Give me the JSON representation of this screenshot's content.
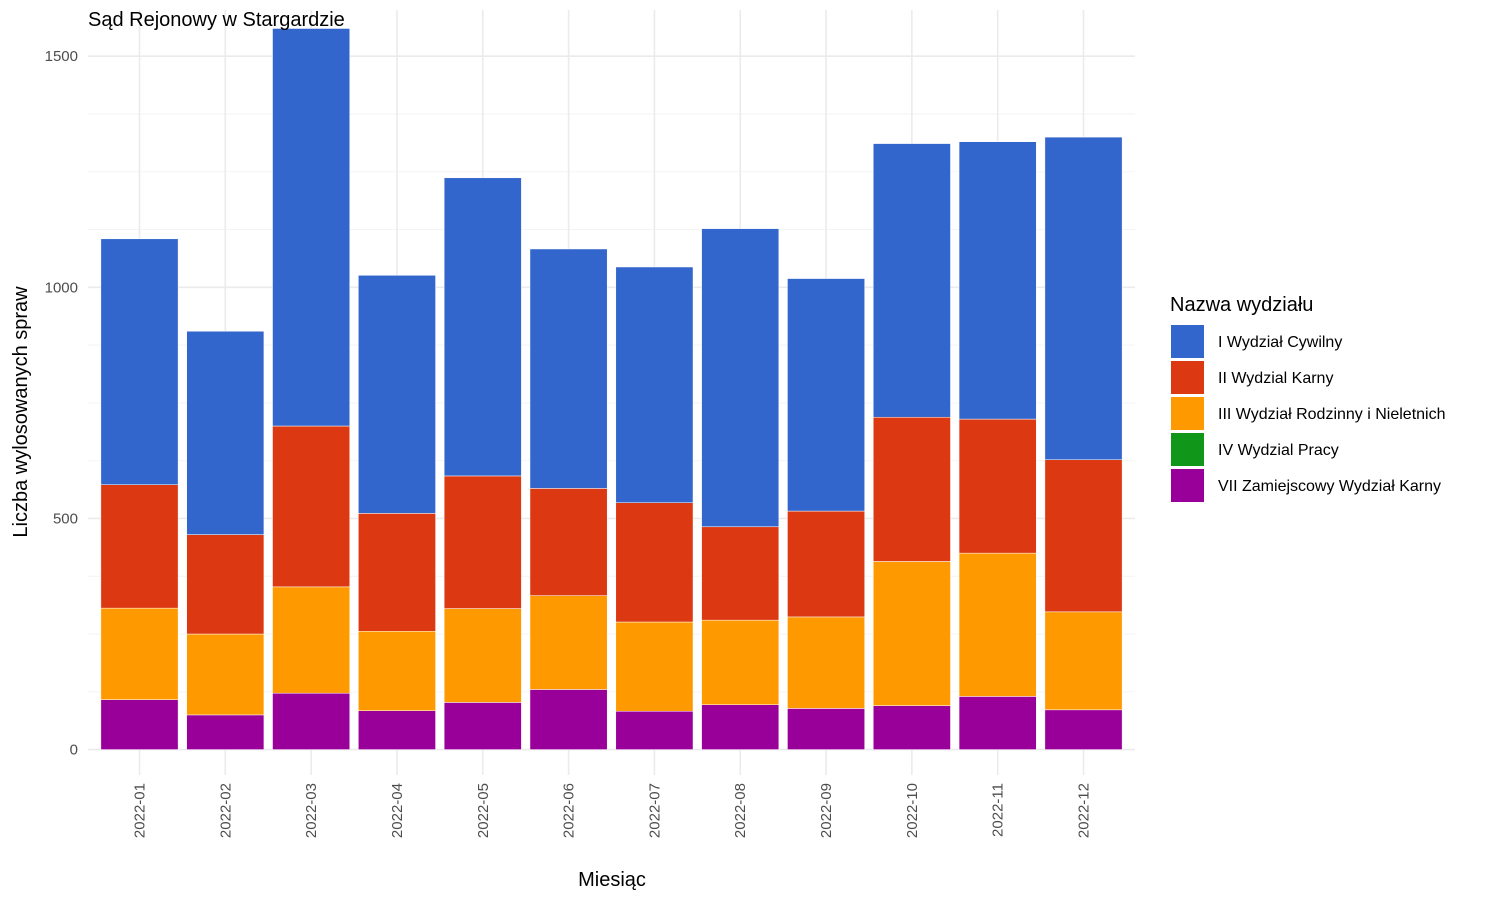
{
  "chart_data": {
    "type": "bar",
    "stacked": true,
    "title": "Sąd Rejonowy w Stargardzie",
    "xlabel": "Miesiąc",
    "ylabel": "Liczba wylosowanych spraw",
    "ylim": [
      -55,
      1600
    ],
    "yticks": [
      0,
      500,
      1000,
      1500
    ],
    "grid": true,
    "legend": {
      "title": "Nazwa wydziału",
      "position": "right"
    },
    "categories": [
      "2022-01",
      "2022-02",
      "2022-03",
      "2022-04",
      "2022-05",
      "2022-06",
      "2022-07",
      "2022-08",
      "2022-09",
      "2022-10",
      "2022-11",
      "2022-12"
    ],
    "series": [
      {
        "name": "VII Zamiejscowy Wydział Karny",
        "color": "#990099",
        "values": [
          108,
          75,
          122,
          84,
          102,
          130,
          83,
          97,
          89,
          95,
          115,
          86
        ]
      },
      {
        "name": "IV Wydzial Pracy",
        "color": "#109618",
        "values": [
          0,
          0,
          0,
          0,
          0,
          0,
          0,
          0,
          0,
          0,
          0,
          0
        ]
      },
      {
        "name": "III Wydział Rodzinny i Nieletnich",
        "color": "#FF9900",
        "values": [
          198,
          175,
          230,
          172,
          203,
          203,
          193,
          183,
          198,
          312,
          310,
          212
        ]
      },
      {
        "name": "II Wydzial Karny",
        "color": "#DC3912",
        "values": [
          267,
          215,
          348,
          255,
          287,
          232,
          258,
          202,
          229,
          312,
          290,
          329
        ]
      },
      {
        "name": "I Wydział Cywilny",
        "color": "#3366CC",
        "values": [
          532,
          440,
          860,
          515,
          645,
          518,
          510,
          645,
          503,
          592,
          600,
          698
        ]
      }
    ],
    "legend_order": [
      "I Wydział Cywilny",
      "II Wydzial Karny",
      "III Wydział Rodzinny i Nieletnich",
      "IV Wydzial Pracy",
      "VII Zamiejscowy Wydział Karny"
    ]
  }
}
